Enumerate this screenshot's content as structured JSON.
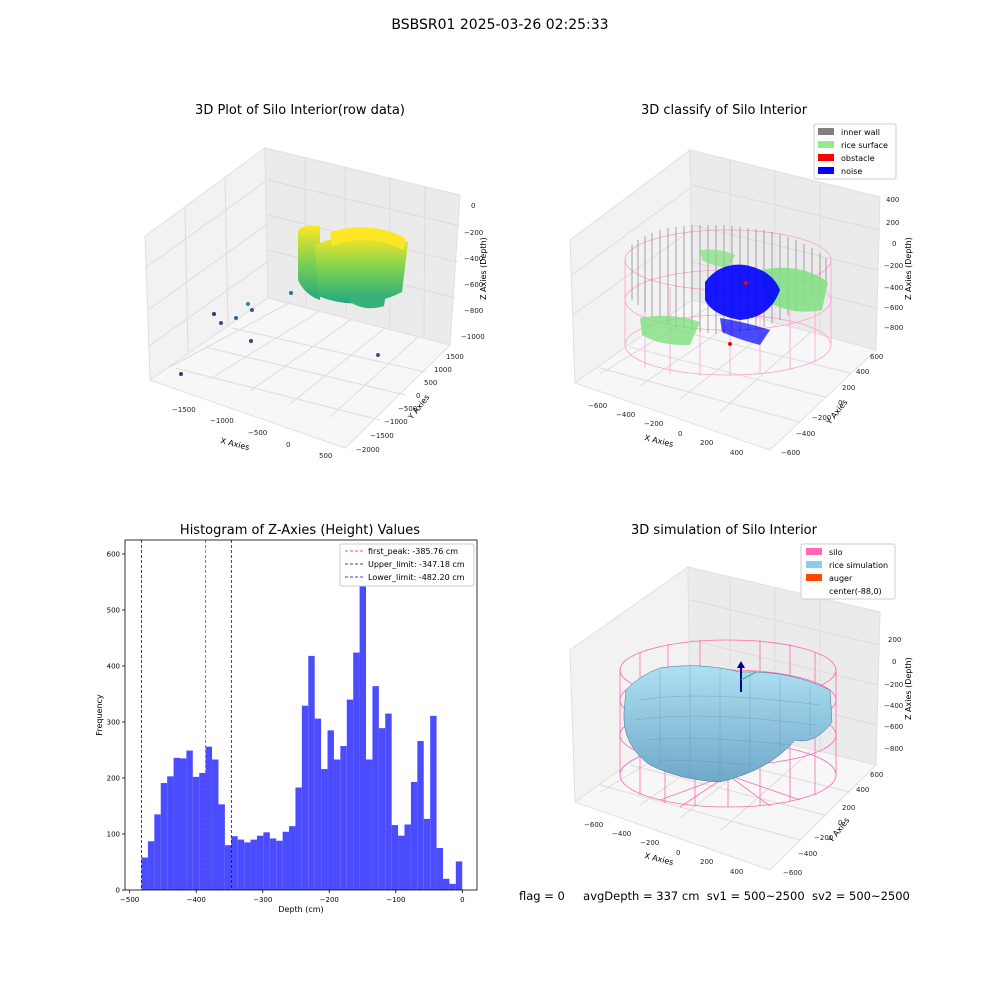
{
  "figure": {
    "suptitle": "BSBSR01 2025-03-26 02:25:33",
    "footer": {
      "flag": "flag = 0",
      "avg_depth": "avgDepth = 337 cm",
      "sv1": "sv1 = 500~2500",
      "sv2": "sv2 = 500~2500"
    }
  },
  "colors": {
    "histogram_bar": "#4c4cff",
    "first_peak_line": "#d62728",
    "limit_lines": "#0000cc",
    "inner_wall": "#808080",
    "rice_surface": "#90ee90",
    "obstacle": "#ff0000",
    "noise": "#0000ff",
    "silo": "#ff69b4",
    "rice_simulation": "#87ceeb",
    "auger": "#ff4500"
  },
  "chart_data": [
    {
      "type": "scatter",
      "title": "3D Plot of Silo Interior(row data)",
      "xlabel": "X Axies",
      "ylabel": "Y Axies",
      "zlabel": "Z Axies (Depth)",
      "x_ticks": [
        "−1500",
        "−1000",
        "−500",
        "0",
        "500"
      ],
      "y_ticks": [
        "−2000",
        "−1500",
        "−1000",
        "−500",
        "0",
        "500",
        "1000",
        "1500"
      ],
      "z_ticks": [
        "0",
        "−200",
        "−400",
        "−600",
        "−800",
        "−1000"
      ],
      "colormap": "viridis"
    },
    {
      "type": "scatter",
      "title": "3D classify of Silo Interior",
      "xlabel": "X Axies",
      "ylabel": "Y Axies",
      "zlabel": "Z Axies (Depth)",
      "x_ticks": [
        "−600",
        "−400",
        "−200",
        "0",
        "200",
        "400"
      ],
      "y_ticks": [
        "−600",
        "−400",
        "−200",
        "0",
        "200",
        "400",
        "600"
      ],
      "z_ticks": [
        "400",
        "200",
        "0",
        "−200",
        "−400",
        "−600",
        "−800"
      ],
      "legend": [
        {
          "label": "inner wall",
          "color": "#808080"
        },
        {
          "label": "rice surface",
          "color": "#90ee90"
        },
        {
          "label": "obstacle",
          "color": "#ff0000"
        },
        {
          "label": "noise",
          "color": "#0000ff"
        }
      ],
      "legend_position": "top-right"
    },
    {
      "type": "bar",
      "title": "Histogram of Z-Axies (Height) Values",
      "xlabel": "Depth (cm)",
      "ylabel": "Frequency",
      "xlim": [
        -507,
        22
      ],
      "ylim": [
        0,
        625
      ],
      "x_ticks": [
        -500,
        -400,
        -300,
        -200,
        -100,
        0
      ],
      "y_ticks": [
        0,
        100,
        200,
        300,
        400,
        500,
        600
      ],
      "bin_start": -482.2,
      "bin_width": 9.64,
      "values": [
        58,
        87,
        135,
        191,
        203,
        236,
        235,
        249,
        202,
        209,
        256,
        233,
        153,
        80,
        96,
        90,
        85,
        90,
        97,
        103,
        92,
        88,
        104,
        114,
        183,
        329,
        418,
        306,
        216,
        285,
        233,
        257,
        340,
        424,
        594,
        233,
        364,
        289,
        315,
        116,
        97,
        117,
        193,
        266,
        127,
        311,
        75,
        20,
        11,
        51
      ],
      "vlines": [
        {
          "label": "first_peak: -385.76 cm",
          "x": -385.76,
          "color": "#d62728"
        },
        {
          "label": "Upper_limit: -347.18 cm",
          "x": -347.18,
          "color": "#0000cc"
        },
        {
          "label": "Lower_limit: -482.20 cm",
          "x": -482.2,
          "color": "#0000cc"
        }
      ],
      "legend_position": "top-right"
    },
    {
      "type": "area",
      "title": "3D simulation of Silo Interior",
      "xlabel": "X Axies",
      "ylabel": "Y Axies",
      "zlabel": "Z Axies (Depth)",
      "x_ticks": [
        "−600",
        "−400",
        "−200",
        "0",
        "200",
        "400"
      ],
      "y_ticks": [
        "−600",
        "−400",
        "−200",
        "0",
        "200",
        "400",
        "600"
      ],
      "z_ticks": [
        "200",
        "0",
        "−200",
        "−400",
        "−600",
        "−800"
      ],
      "legend": [
        {
          "label": "silo",
          "color": "#ff69b4"
        },
        {
          "label": "rice simulation",
          "color": "#87ceeb"
        },
        {
          "label": "auger",
          "color": "#ff4500"
        },
        {
          "label": "center(-88,0)",
          "color": ""
        }
      ],
      "legend_position": "top-right"
    }
  ]
}
